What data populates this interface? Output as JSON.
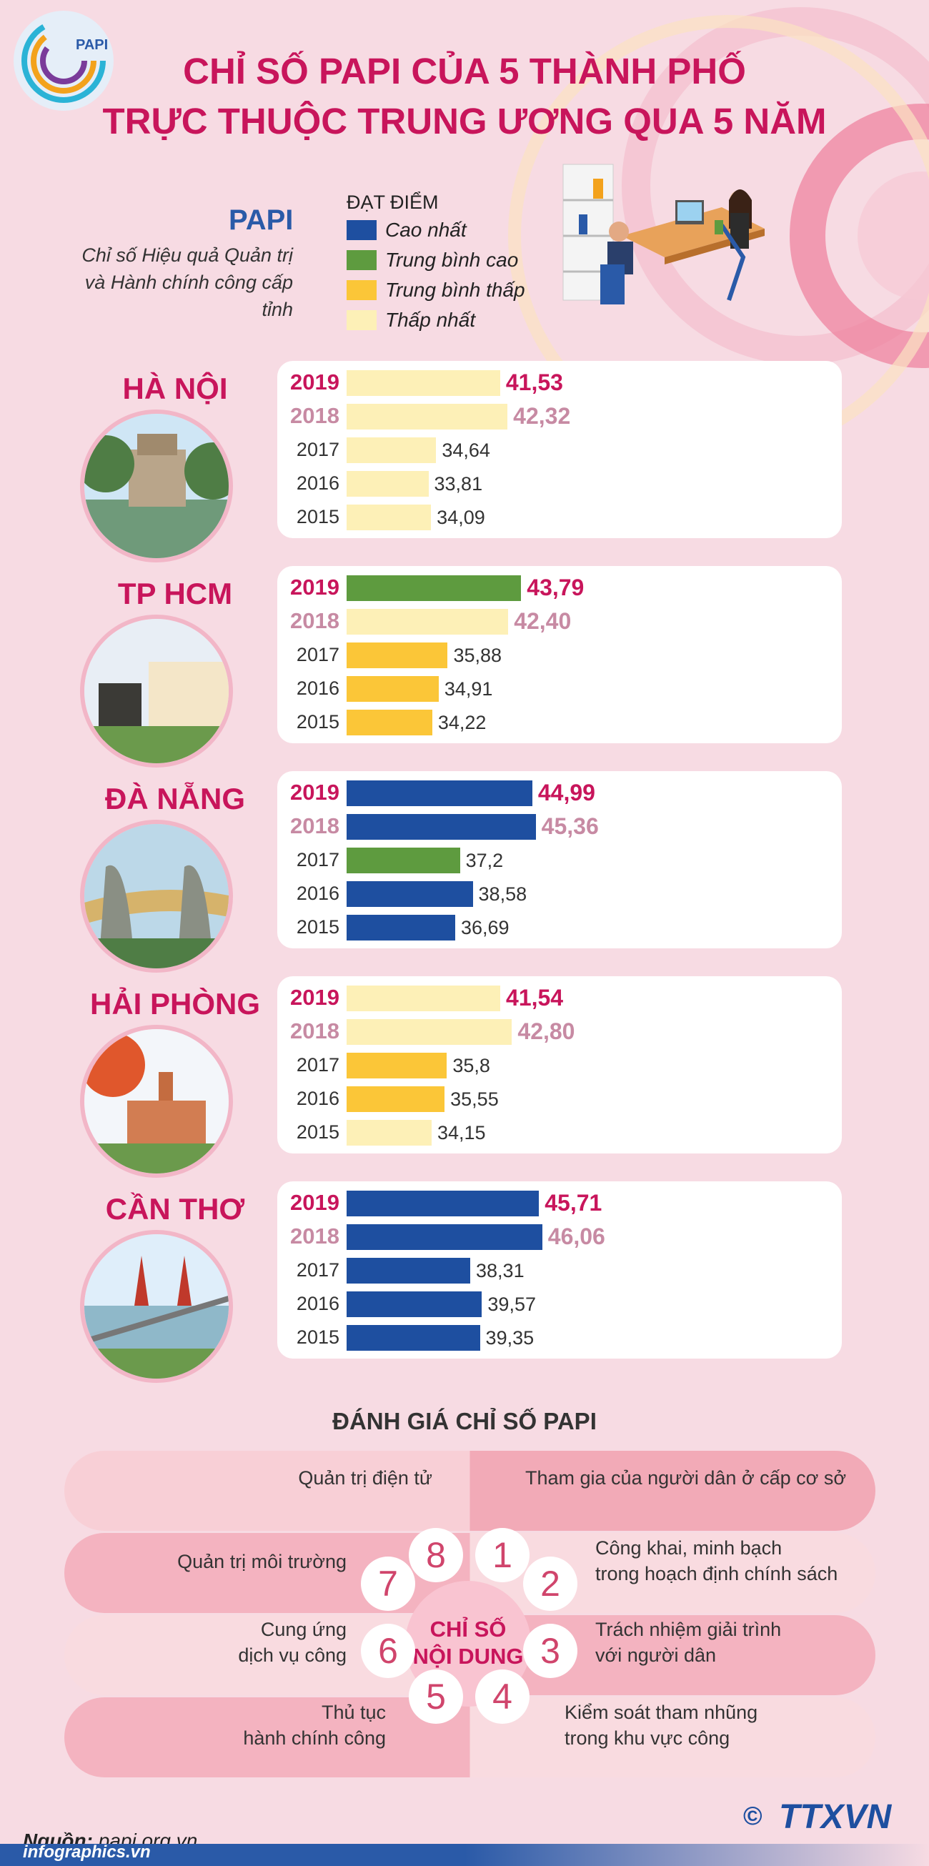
{
  "header": {
    "logo_text": "PAPI",
    "title_line1": "CHỈ SỐ PAPI CỦA 5 THÀNH PHỐ",
    "title_line2": "TRỰC THUỘC TRUNG ƯƠNG QUA 5 NĂM"
  },
  "intro": {
    "papi": "PAPI",
    "subtitle_line1": "Chỉ số Hiệu quả Quản trị",
    "subtitle_line2": "và Hành chính công cấp tỉnh"
  },
  "legend": {
    "heading": "ĐẠT ĐIỂM",
    "items": [
      {
        "label": "Cao nhất",
        "color": "#1e4fa0"
      },
      {
        "label": "Trung bình cao",
        "color": "#5e9b3f"
      },
      {
        "label": "Trung bình thấp",
        "color": "#fbc638"
      },
      {
        "label": "Thấp nhất",
        "color": "#fdf0b7"
      }
    ]
  },
  "chart_data": {
    "type": "bar",
    "orientation": "horizontal",
    "years": [
      "2019",
      "2018",
      "2017",
      "2016",
      "2015"
    ],
    "cities": [
      {
        "name": "HÀ NỘI",
        "values": [
          41.53,
          42.32,
          34.64,
          33.81,
          34.09
        ],
        "labels": [
          "41,53",
          "42,32",
          "34,64",
          "33,81",
          "34,09"
        ],
        "levels": [
          3,
          3,
          3,
          3,
          3
        ]
      },
      {
        "name": "TP HCM",
        "values": [
          43.79,
          42.4,
          35.88,
          34.91,
          34.22
        ],
        "labels": [
          "43,79",
          "42,40",
          "35,88",
          "34,91",
          "34,22"
        ],
        "levels": [
          1,
          3,
          2,
          2,
          2
        ]
      },
      {
        "name": "ĐÀ NẴNG",
        "values": [
          44.99,
          45.36,
          37.2,
          38.58,
          36.69
        ],
        "labels": [
          "44,99",
          "45,36",
          "37,2",
          "38,58",
          "36,69"
        ],
        "levels": [
          0,
          0,
          1,
          0,
          0
        ]
      },
      {
        "name": "HẢI PHÒNG",
        "values": [
          41.54,
          42.8,
          35.8,
          35.55,
          34.15
        ],
        "labels": [
          "41,54",
          "42,80",
          "35,8",
          "35,55",
          "34,15"
        ],
        "levels": [
          3,
          3,
          2,
          2,
          3
        ]
      },
      {
        "name": "CẦN THƠ",
        "values": [
          45.71,
          46.06,
          38.31,
          39.57,
          39.35
        ],
        "labels": [
          "45,71",
          "46,06",
          "38,31",
          "39,57",
          "39,35"
        ],
        "levels": [
          0,
          0,
          0,
          0,
          0
        ]
      }
    ]
  },
  "evaluation": {
    "title": "ĐÁNH GIÁ CHỈ SỐ PAPI",
    "center_line1": "CHỈ SỐ",
    "center_line2": "NỘI DUNG",
    "items": [
      {
        "num": "1",
        "line1": "Tham gia của người dân ở cấp cơ sở",
        "line2": ""
      },
      {
        "num": "2",
        "line1": "Công khai, minh bạch",
        "line2": "trong hoạch định chính sách"
      },
      {
        "num": "3",
        "line1": "Trách nhiệm giải trình",
        "line2": "với người dân"
      },
      {
        "num": "4",
        "line1": "Kiểm soát tham nhũng",
        "line2": "trong khu vực công"
      },
      {
        "num": "5",
        "line1": "Thủ tục",
        "line2": "hành chính công"
      },
      {
        "num": "6",
        "line1": "Cung ứng",
        "line2": "dịch vụ công"
      },
      {
        "num": "7",
        "line1": "Quản trị môi trường",
        "line2": ""
      },
      {
        "num": "8",
        "line1": "Quản trị điện tử",
        "line2": ""
      }
    ]
  },
  "footer": {
    "source_label": "Nguồn:",
    "source_value": "papi.org.vn",
    "site": "infographics.vn",
    "copyright": "©",
    "agency": "TTXVN"
  }
}
